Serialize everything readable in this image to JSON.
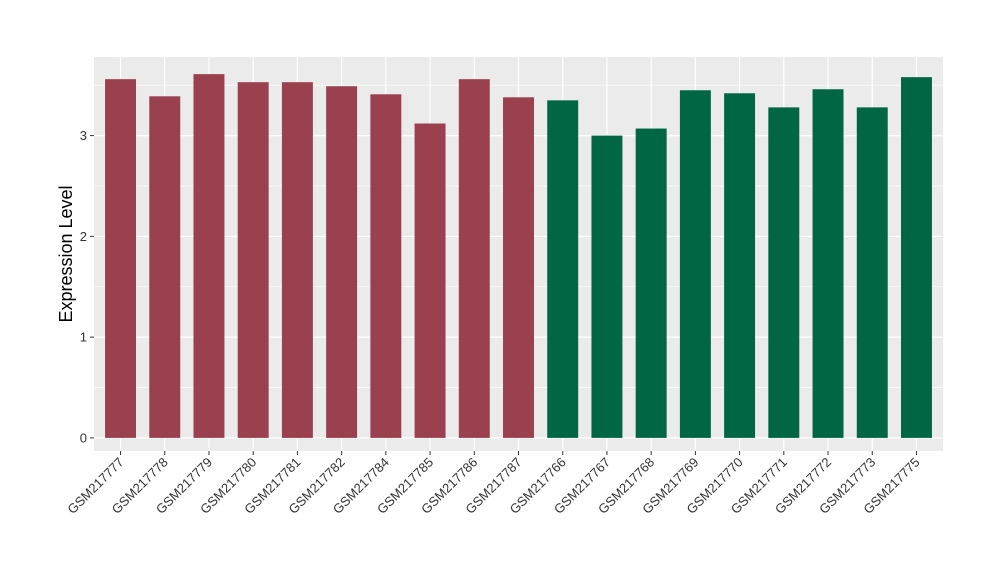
{
  "chart_data": {
    "type": "bar",
    "title": "",
    "xlabel": "",
    "ylabel": "Expression Level",
    "ylim": [
      -0.13,
      3.78
    ],
    "yticks": [
      0,
      1,
      2,
      3
    ],
    "grid": true,
    "legend": "none",
    "categories": [
      "GSM217777",
      "GSM217778",
      "GSM217779",
      "GSM217780",
      "GSM217781",
      "GSM217782",
      "GSM217784",
      "GSM217785",
      "GSM217786",
      "GSM217787",
      "GSM217766",
      "GSM217767",
      "GSM217768",
      "GSM217769",
      "GSM217770",
      "GSM217771",
      "GSM217772",
      "GSM217773",
      "GSM217775"
    ],
    "values": [
      3.56,
      3.39,
      3.61,
      3.53,
      3.53,
      3.49,
      3.41,
      3.12,
      3.56,
      3.38,
      3.35,
      3.0,
      3.07,
      3.45,
      3.42,
      3.28,
      3.46,
      3.28,
      3.58
    ],
    "bar_colors": [
      "#9a404f",
      "#9a404f",
      "#9a404f",
      "#9a404f",
      "#9a404f",
      "#9a404f",
      "#9a404f",
      "#9a404f",
      "#9a404f",
      "#9a404f",
      "#006644",
      "#006644",
      "#006644",
      "#006644",
      "#006644",
      "#006644",
      "#006644",
      "#006644",
      "#006644"
    ],
    "panel_background": "#ebebeb",
    "grid_color": "#ffffff"
  }
}
